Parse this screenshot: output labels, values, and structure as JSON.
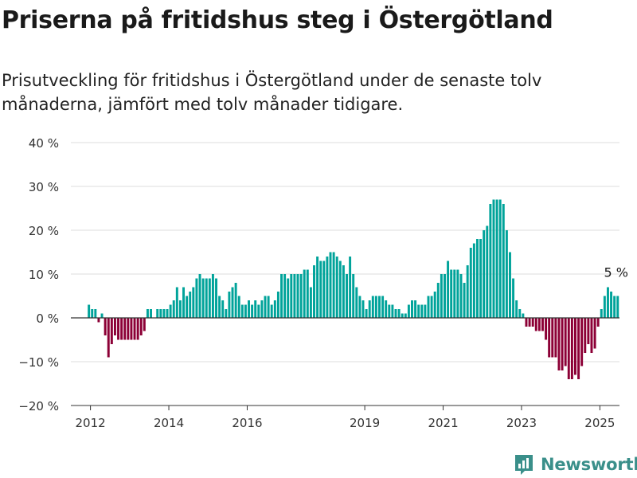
{
  "title": "Priserna på fritidshus steg i Östergötland",
  "subtitle": "Prisutveckling för fritidshus i Östergötland under de senaste tolv månaderna, jämfört med tolv månader tidigare.",
  "brand": {
    "name": "Newsworthy",
    "color": "#3a8f8a"
  },
  "chart_data": {
    "type": "bar",
    "unit": "%",
    "colors": {
      "positive": "#00a39a",
      "negative": "#8c0036",
      "zero_line": "#333333",
      "grid": "#dddddd"
    },
    "grid": true,
    "ylim": [
      -20,
      40
    ],
    "yticks": [
      -20,
      -10,
      0,
      10,
      20,
      30,
      40
    ],
    "ytick_labels": [
      "−20 %",
      "−10 %",
      "0 %",
      "10 %",
      "20 %",
      "30 %",
      "40 %"
    ],
    "xlim": [
      2011.5,
      2025.5
    ],
    "xticks": [
      2012,
      2014,
      2016,
      2019,
      2021,
      2023,
      2025
    ],
    "xtick_labels": [
      "2012",
      "2014",
      "2016",
      "2019",
      "2021",
      "2023",
      "2025"
    ],
    "x_start": 2011.96,
    "x_step": 0.0833,
    "values": [
      3,
      2,
      2,
      -1,
      1,
      -4,
      -9,
      -6,
      -4,
      -5,
      -5,
      -5,
      -5,
      -5,
      -5,
      -5,
      -4,
      -3,
      2,
      2,
      0,
      2,
      2,
      2,
      2,
      3,
      4,
      7,
      4,
      7,
      5,
      6,
      7,
      9,
      10,
      9,
      9,
      9,
      10,
      9,
      5,
      4,
      2,
      6,
      7,
      8,
      5,
      3,
      3,
      4,
      3,
      4,
      3,
      4,
      5,
      5,
      3,
      4,
      6,
      10,
      10,
      9,
      10,
      10,
      10,
      10,
      11,
      11,
      7,
      12,
      14,
      13,
      13,
      14,
      15,
      15,
      14,
      13,
      12,
      10,
      14,
      10,
      7,
      5,
      4,
      2,
      4,
      5,
      5,
      5,
      5,
      4,
      3,
      3,
      2,
      2,
      1,
      1,
      3,
      4,
      4,
      3,
      3,
      3,
      5,
      5,
      6,
      8,
      10,
      10,
      13,
      11,
      11,
      11,
      10,
      8,
      12,
      16,
      17,
      18,
      18,
      20,
      21,
      26,
      27,
      27,
      27,
      26,
      20,
      15,
      9,
      4,
      2,
      1,
      -2,
      -2,
      -2,
      -3,
      -3,
      -3,
      -5,
      -9,
      -9,
      -9,
      -12,
      -12,
      -11,
      -14,
      -14,
      -13,
      -14,
      -11,
      -8,
      -6,
      -8,
      -7,
      -2,
      2,
      5,
      7,
      6,
      5,
      5
    ],
    "annotation": "5 %"
  }
}
